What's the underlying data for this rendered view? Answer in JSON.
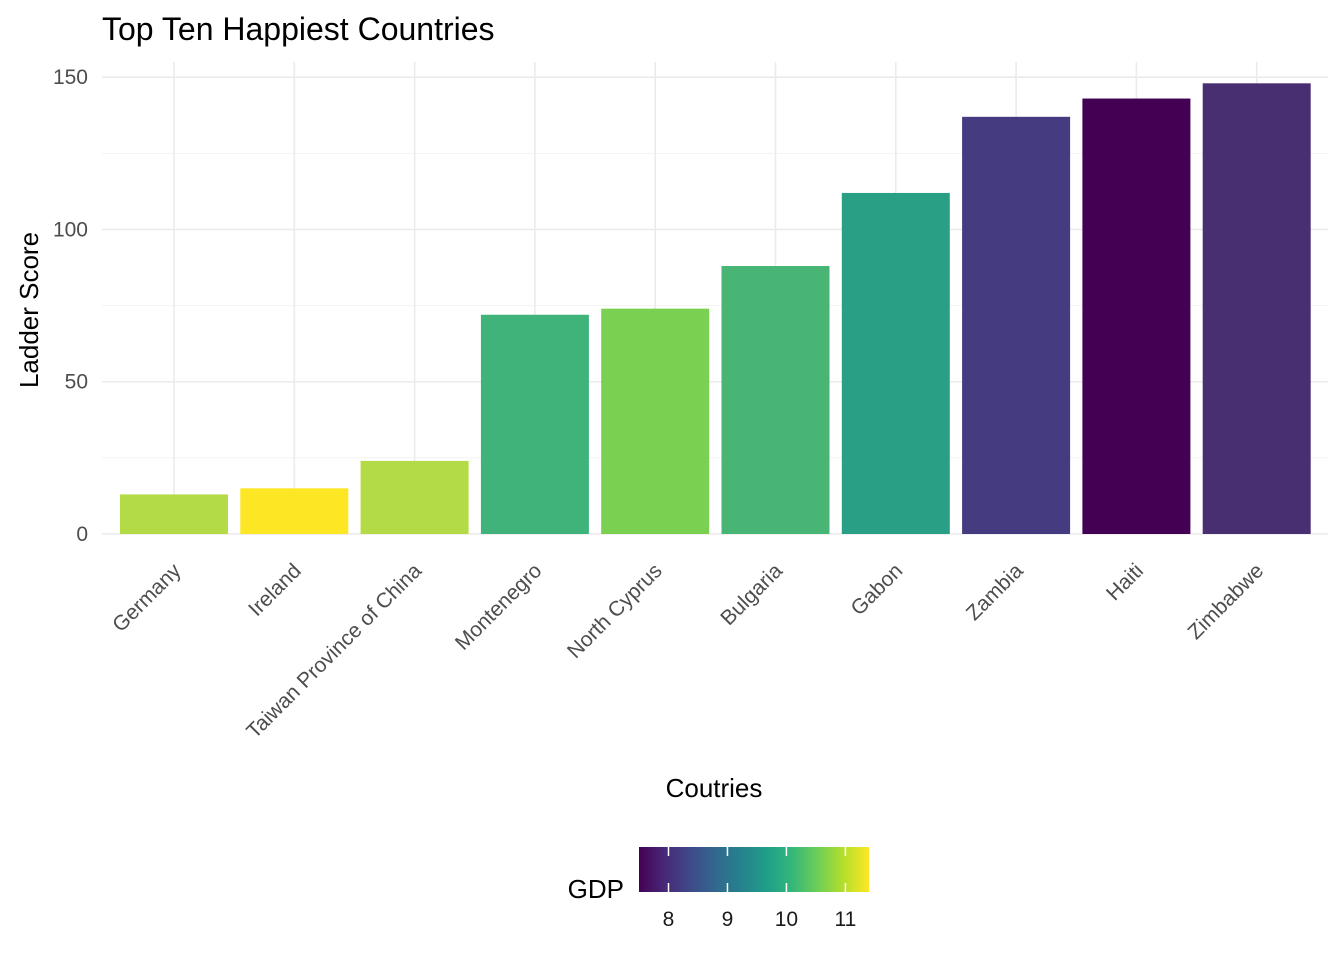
{
  "chart_data": {
    "type": "bar",
    "title": "Top Ten Happiest Countries",
    "xlabel": "Coutries",
    "ylabel": "Ladder Score",
    "categories": [
      "Germany",
      "Ireland",
      "Taiwan Province of China",
      "Montenegro",
      "North Cyprus",
      "Bulgaria",
      "Gabon",
      "Zambia",
      "Haiti",
      "Zimbabwe"
    ],
    "values": [
      13,
      15,
      24,
      72,
      74,
      88,
      112,
      137,
      143,
      148
    ],
    "colors": [
      "#b2db45",
      "#fde725",
      "#b2db45",
      "#3fb37a",
      "#7ad151",
      "#48b574",
      "#29a085",
      "#443b80",
      "#440154",
      "#472f71"
    ],
    "ylim": [
      0,
      155
    ],
    "yticks": [
      0,
      50,
      100,
      150
    ],
    "grid": true,
    "legend": {
      "title": "GDP",
      "placement": "bottom",
      "type": "continuous",
      "range": [
        7.5,
        11.4
      ],
      "ticks": [
        8,
        9,
        10,
        11
      ],
      "palette": [
        "#440154",
        "#482878",
        "#3e4a89",
        "#31688e",
        "#26828e",
        "#1f9e89",
        "#35b779",
        "#6ece58",
        "#b5de2b",
        "#fde725"
      ]
    }
  }
}
